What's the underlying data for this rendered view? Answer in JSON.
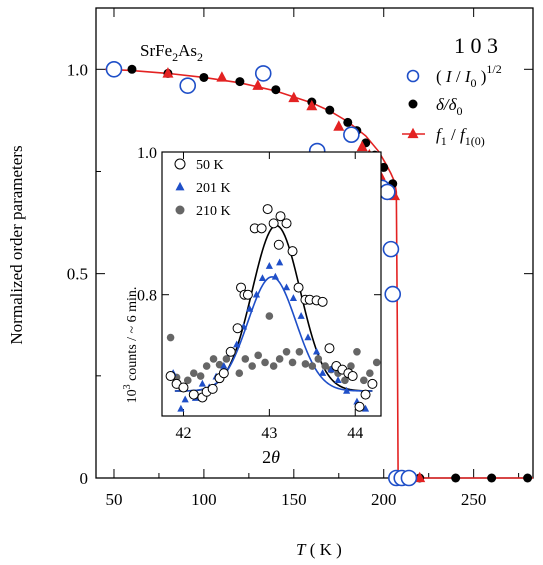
{
  "chart_data": [
    {
      "type": "scatter",
      "sample": "SrFe",
      "sample_sub": "2",
      "sample_mid": "As",
      "sample_sub2": "2",
      "reflection": "1 0 3",
      "xlabel_symbol": "T",
      "xlabel_unit": "( K )",
      "ylabel": "Normalized order parameters",
      "xlim": [
        40,
        283
      ],
      "ylim": [
        0,
        1.15
      ],
      "xticks": [
        50,
        100,
        150,
        200,
        250
      ],
      "yticks": [
        0,
        0.5,
        1.0
      ],
      "ytick_labels": [
        "0",
        "0.5",
        "1.0"
      ],
      "legend_position": "top-right",
      "legend_labels": [
        {
          "pre": "( I / I",
          "sub": "0",
          "post": " )",
          "sup": "1/2"
        },
        {
          "pre": "δ/δ",
          "sub": "0",
          "post": "",
          "sup": ""
        },
        {
          "pre": "f",
          "sub": "1",
          "post": " / f",
          "sub2": "1(0)"
        }
      ],
      "series": [
        {
          "marker": "open-circle",
          "color": "#1f4fc8",
          "points": [
            [
              50,
              1.0
            ],
            [
              91,
              0.96
            ],
            [
              133,
              0.99
            ],
            [
              163,
              0.8
            ],
            [
              182,
              0.84
            ],
            [
              199,
              0.71
            ],
            [
              202,
              0.7
            ],
            [
              204,
              0.56
            ],
            [
              205,
              0.45
            ],
            [
              207,
              0.0
            ],
            [
              210,
              0.0
            ],
            [
              214,
              0.0
            ]
          ]
        },
        {
          "marker": "filled-circle",
          "color": "#000000",
          "points": [
            [
              60,
              1.0
            ],
            [
              80,
              0.99
            ],
            [
              100,
              0.98
            ],
            [
              120,
              0.97
            ],
            [
              140,
              0.95
            ],
            [
              160,
              0.92
            ],
            [
              170,
              0.9
            ],
            [
              180,
              0.87
            ],
            [
              185,
              0.85
            ],
            [
              190,
              0.82
            ],
            [
              195,
              0.79
            ],
            [
              200,
              0.76
            ],
            [
              205,
              0.72
            ],
            [
              210,
              0.0
            ],
            [
              220,
              0.0
            ],
            [
              240,
              0.0
            ],
            [
              260,
              0.0
            ],
            [
              280,
              0.0
            ]
          ]
        },
        {
          "marker": "filled-triangle",
          "color": "#e32222",
          "points": [
            [
              80,
              0.99
            ],
            [
              110,
              0.98
            ],
            [
              130,
              0.96
            ],
            [
              150,
              0.93
            ],
            [
              160,
              0.91
            ],
            [
              175,
              0.86
            ],
            [
              188,
              0.81
            ],
            [
              192,
              0.79
            ],
            [
              195,
              0.77
            ],
            [
              198,
              0.74
            ],
            [
              200,
              0.72
            ],
            [
              203,
              0.7
            ],
            [
              206,
              0.69
            ],
            [
              220,
              0.0
            ]
          ]
        }
      ],
      "fit_curve": {
        "color": "#e32222",
        "points": [
          [
            45,
            1.0
          ],
          [
            60,
            0.997
          ],
          [
            80,
            0.99
          ],
          [
            100,
            0.98
          ],
          [
            120,
            0.967
          ],
          [
            140,
            0.947
          ],
          [
            160,
            0.918
          ],
          [
            170,
            0.898
          ],
          [
            180,
            0.872
          ],
          [
            190,
            0.837
          ],
          [
            197,
            0.8
          ],
          [
            201,
            0.77
          ],
          [
            204,
            0.745
          ],
          [
            206,
            0.725
          ],
          [
            207,
            0.7
          ],
          [
            207.5,
            0.4
          ],
          [
            208,
            0.0
          ],
          [
            283,
            0.0
          ]
        ]
      }
    },
    {
      "type": "scatter",
      "inset": true,
      "xlabel": "2θ",
      "ylabel": "10",
      "ylabel_sup": "3",
      "ylabel_rest": " counts / ~ 6 min.",
      "xlim": [
        41.75,
        44.3
      ],
      "ylim": [
        0.63,
        1.0
      ],
      "xticks": [
        42,
        43,
        44
      ],
      "yticks": [
        0.8,
        1.0
      ],
      "ytick_labels": [
        "0.8",
        "1.0"
      ],
      "legend_position": "top-left",
      "series": [
        {
          "name": "50 K",
          "marker": "open-circle",
          "color": "#000000",
          "points": [
            [
              41.85,
              0.686
            ],
            [
              41.92,
              0.675
            ],
            [
              42.0,
              0.67
            ],
            [
              42.12,
              0.66
            ],
            [
              42.22,
              0.656
            ],
            [
              42.27,
              0.664
            ],
            [
              42.34,
              0.668
            ],
            [
              42.42,
              0.683
            ],
            [
              42.47,
              0.69
            ],
            [
              42.55,
              0.72
            ],
            [
              42.63,
              0.753
            ],
            [
              42.67,
              0.81
            ],
            [
              42.71,
              0.8
            ],
            [
              42.75,
              0.8
            ],
            [
              42.83,
              0.893
            ],
            [
              42.91,
              0.893
            ],
            [
              42.98,
              0.92
            ],
            [
              43.05,
              0.9
            ],
            [
              43.11,
              0.87
            ],
            [
              43.13,
              0.91
            ],
            [
              43.2,
              0.9
            ],
            [
              43.27,
              0.861
            ],
            [
              43.34,
              0.81
            ],
            [
              43.42,
              0.793
            ],
            [
              43.47,
              0.793
            ],
            [
              43.55,
              0.792
            ],
            [
              43.62,
              0.79
            ],
            [
              43.7,
              0.725
            ],
            [
              43.78,
              0.7
            ],
            [
              43.85,
              0.695
            ],
            [
              43.92,
              0.69
            ],
            [
              43.97,
              0.686
            ],
            [
              44.05,
              0.643
            ],
            [
              44.12,
              0.66
            ],
            [
              44.2,
              0.675
            ]
          ]
        },
        {
          "name": "201 K",
          "marker": "filled-triangle",
          "color": "#1f4fc8",
          "points": [
            [
              41.88,
              0.69
            ],
            [
              41.97,
              0.64
            ],
            [
              42.02,
              0.653
            ],
            [
              42.14,
              0.655
            ],
            [
              42.22,
              0.675
            ],
            [
              42.3,
              0.67
            ],
            [
              42.38,
              0.685
            ],
            [
              42.47,
              0.7
            ],
            [
              42.55,
              0.718
            ],
            [
              42.62,
              0.73
            ],
            [
              42.7,
              0.755
            ],
            [
              42.77,
              0.78
            ],
            [
              42.85,
              0.8
            ],
            [
              42.92,
              0.823
            ],
            [
              43.0,
              0.84
            ],
            [
              43.07,
              0.825
            ],
            [
              43.12,
              0.845
            ],
            [
              43.2,
              0.81
            ],
            [
              43.28,
              0.795
            ],
            [
              43.37,
              0.77
            ],
            [
              43.45,
              0.74
            ],
            [
              43.55,
              0.72
            ],
            [
              43.62,
              0.69
            ],
            [
              43.72,
              0.695
            ],
            [
              43.8,
              0.68
            ],
            [
              43.9,
              0.665
            ],
            [
              44.02,
              0.65
            ],
            [
              44.12,
              0.64
            ]
          ]
        },
        {
          "name": "210 K",
          "marker": "filled-circle",
          "color": "#666666",
          "points": [
            [
              41.85,
              0.74
            ],
            [
              41.92,
              0.684
            ],
            [
              41.98,
              0.67
            ],
            [
              42.05,
              0.68
            ],
            [
              42.12,
              0.69
            ],
            [
              42.2,
              0.686
            ],
            [
              42.27,
              0.7
            ],
            [
              42.35,
              0.71
            ],
            [
              42.42,
              0.702
            ],
            [
              42.5,
              0.71
            ],
            [
              42.57,
              0.72
            ],
            [
              42.65,
              0.69
            ],
            [
              42.72,
              0.71
            ],
            [
              42.8,
              0.7
            ],
            [
              42.87,
              0.715
            ],
            [
              42.95,
              0.705
            ],
            [
              43.0,
              0.77
            ],
            [
              43.05,
              0.7
            ],
            [
              43.12,
              0.71
            ],
            [
              43.2,
              0.72
            ],
            [
              43.27,
              0.705
            ],
            [
              43.35,
              0.72
            ],
            [
              43.42,
              0.703
            ],
            [
              43.5,
              0.7
            ],
            [
              43.57,
              0.71
            ],
            [
              43.65,
              0.7
            ],
            [
              43.72,
              0.695
            ],
            [
              43.8,
              0.69
            ],
            [
              43.88,
              0.68
            ],
            [
              43.95,
              0.7
            ],
            [
              44.02,
              0.72
            ],
            [
              44.1,
              0.68
            ],
            [
              44.17,
              0.69
            ],
            [
              44.25,
              0.705
            ]
          ]
        }
      ],
      "fits": [
        {
          "color": "#000000",
          "center": 43.08,
          "amplitude": 0.232,
          "width": 0.28,
          "baseline": 0.665
        },
        {
          "color": "#1f4fc8",
          "center": 43.03,
          "amplitude": 0.16,
          "width": 0.28,
          "baseline": 0.665
        }
      ]
    }
  ]
}
